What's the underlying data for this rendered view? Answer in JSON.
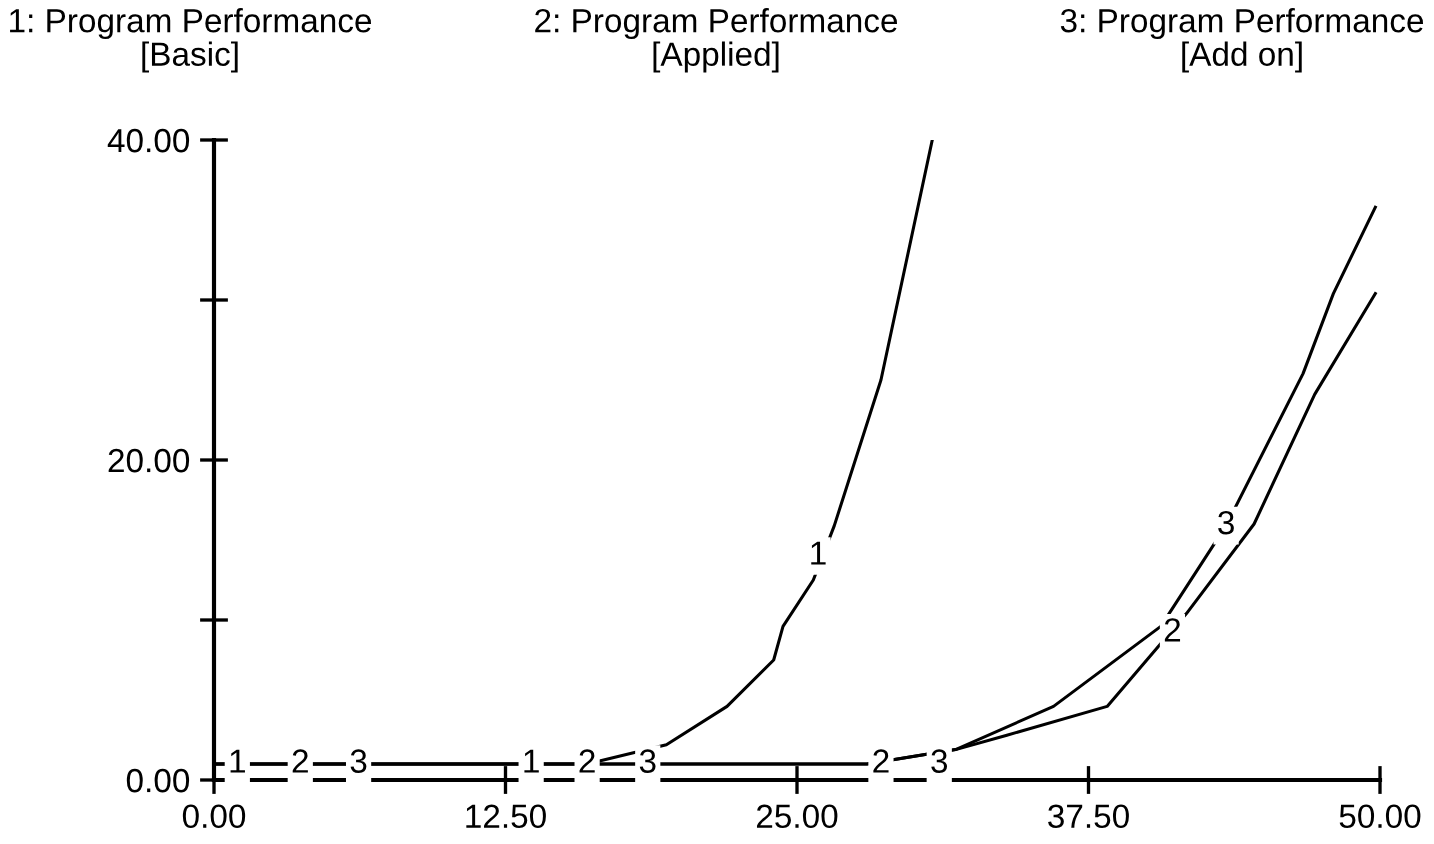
{
  "chart_data": {
    "type": "line",
    "series": [
      {
        "color": "#000000",
        "x": [
          0,
          10,
          16,
          19.4,
          22,
          24,
          24.4,
          25.7,
          26.6,
          28.6,
          30.8
        ],
        "values": [
          1,
          1,
          1,
          2.2,
          4.6,
          7.5,
          9.6,
          12.5,
          15.9,
          25,
          40
        ]
      },
      {
        "color": "#000000",
        "x": [
          0,
          10,
          20,
          28,
          31.8,
          34,
          38.3,
          41.7,
          44.6,
          47.2,
          49.8
        ],
        "values": [
          1,
          1,
          1,
          1,
          1.9,
          2.8,
          4.6,
          10.4,
          16,
          24.1,
          30.4
        ]
      },
      {
        "color": "#000000",
        "x": [
          0,
          10,
          20,
          28,
          31.8,
          36,
          40.6,
          43.4,
          46.7,
          48,
          49.8
        ],
        "values": [
          1,
          1,
          1,
          1,
          1.9,
          4.6,
          9.6,
          15.9,
          25.4,
          30.4,
          35.8
        ]
      }
    ],
    "annotations": [
      "1: Program Performance\n[Basic]",
      "2: Program Performance\n[Applied]",
      "3: Program Performance\n[Add on]",
      {
        "text": "1",
        "x": 1.0,
        "y": 1
      },
      {
        "text": "2",
        "x": 3.7,
        "y": 1
      },
      {
        "text": "3",
        "x": 6.2,
        "y": 1
      },
      {
        "text": "1",
        "x": 13.6,
        "y": 1
      },
      {
        "text": "2",
        "x": 16.0,
        "y": 1
      },
      {
        "text": "3",
        "x": 18.6,
        "y": 1
      },
      {
        "text": "2",
        "x": 28.6,
        "y": 1
      },
      {
        "text": "3",
        "x": 31.1,
        "y": 1
      },
      {
        "text": "1",
        "x": 25.9,
        "y": 14
      },
      {
        "text": "2",
        "x": 41.1,
        "y": 9.2
      },
      {
        "text": "3",
        "x": 43.4,
        "y": 15.9
      }
    ],
    "xlim": [
      0,
      50
    ],
    "xticks": [
      {
        "value": 0,
        "label": "0.00"
      },
      {
        "value": 12.5,
        "label": "12.50"
      },
      {
        "value": 25,
        "label": "25.00"
      },
      {
        "value": 37.5,
        "label": "37.50"
      },
      {
        "value": 50,
        "label": "50.00"
      }
    ],
    "ylim": [
      0,
      40
    ],
    "yticks": [
      {
        "value": 0,
        "label": "0.00"
      },
      {
        "value": 10,
        "label": null
      },
      {
        "value": 20,
        "label": "20.00"
      },
      {
        "value": 30,
        "label": null
      },
      {
        "value": 40,
        "label": "40.00"
      }
    ],
    "grid": false,
    "legend": false,
    "marker": "none",
    "line_style": "solid"
  }
}
